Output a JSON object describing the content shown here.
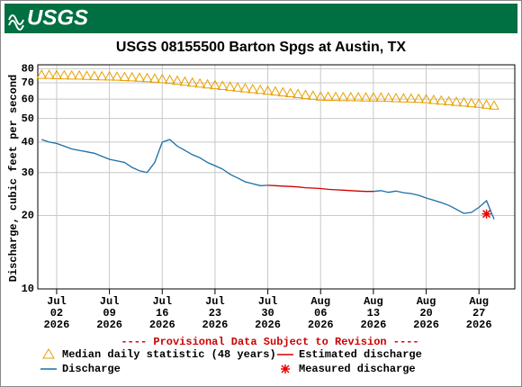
{
  "header": {
    "logo": "USGS"
  },
  "chart_data": {
    "type": "line",
    "title": "USGS 08155500 Barton Spgs at Austin, TX",
    "y_label": "Discharge, cubic feet per second",
    "notice": "---- Provisional Data Subject to Revision ----",
    "log_y": true,
    "grid": true,
    "legend_position": "bottom",
    "xlim": [
      "2026-06-29T12:00",
      "2026-08-31T18:00"
    ],
    "ylim": [
      10,
      83
    ],
    "yticks": [
      10,
      20,
      30,
      40,
      50,
      60,
      70,
      80
    ],
    "xticks": [
      {
        "value": "2026-07-02",
        "label": [
          "Jul",
          "02",
          "2026"
        ]
      },
      {
        "value": "2026-07-09",
        "label": [
          "Jul",
          "09",
          "2026"
        ]
      },
      {
        "value": "2026-07-16",
        "label": [
          "Jul",
          "16",
          "2026"
        ]
      },
      {
        "value": "2026-07-23",
        "label": [
          "Jul",
          "23",
          "2026"
        ]
      },
      {
        "value": "2026-07-30",
        "label": [
          "Jul",
          "30",
          "2026"
        ]
      },
      {
        "value": "2026-08-06",
        "label": [
          "Aug",
          "06",
          "2026"
        ]
      },
      {
        "value": "2026-08-13",
        "label": [
          "Aug",
          "13",
          "2026"
        ]
      },
      {
        "value": "2026-08-20",
        "label": [
          "Aug",
          "20",
          "2026"
        ]
      },
      {
        "value": "2026-08-27",
        "label": [
          "Aug",
          "27",
          "2026"
        ]
      }
    ],
    "x": [
      "2026-06-30",
      "2026-07-01",
      "2026-07-02",
      "2026-07-03",
      "2026-07-04",
      "2026-07-05",
      "2026-07-06",
      "2026-07-07",
      "2026-07-08",
      "2026-07-09",
      "2026-07-10",
      "2026-07-11",
      "2026-07-12",
      "2026-07-13",
      "2026-07-14",
      "2026-07-15",
      "2026-07-16",
      "2026-07-17",
      "2026-07-18",
      "2026-07-19",
      "2026-07-20",
      "2026-07-21",
      "2026-07-22",
      "2026-07-23",
      "2026-07-24",
      "2026-07-25",
      "2026-07-26",
      "2026-07-27",
      "2026-07-28",
      "2026-07-29",
      "2026-07-30",
      "2026-07-31",
      "2026-08-01",
      "2026-08-02",
      "2026-08-03",
      "2026-08-04",
      "2026-08-05",
      "2026-08-06",
      "2026-08-07",
      "2026-08-08",
      "2026-08-09",
      "2026-08-10",
      "2026-08-11",
      "2026-08-12",
      "2026-08-13",
      "2026-08-14",
      "2026-08-15",
      "2026-08-16",
      "2026-08-17",
      "2026-08-18",
      "2026-08-19",
      "2026-08-20",
      "2026-08-21",
      "2026-08-22",
      "2026-08-23",
      "2026-08-24",
      "2026-08-25",
      "2026-08-26",
      "2026-08-27",
      "2026-08-28",
      "2026-08-29"
    ],
    "series": [
      {
        "name": "Median daily statistic (48 years)",
        "color": "#e8a000",
        "marker": "triangle",
        "values": [
          75.5,
          75.5,
          75.3,
          75.2,
          75,
          75,
          74.8,
          74.7,
          74.5,
          74.4,
          74.2,
          74,
          73.8,
          73.5,
          73.2,
          72.9,
          72.5,
          72,
          71.4,
          70.8,
          70.2,
          69.6,
          69,
          68.5,
          68,
          67.5,
          67,
          66.5,
          66,
          65.5,
          65,
          64.5,
          64,
          63.5,
          63,
          62.5,
          62,
          61.5,
          61.4,
          61.3,
          61.2,
          61.2,
          61.1,
          61,
          61,
          60.9,
          60.8,
          60.6,
          60.5,
          60.4,
          60.2,
          60,
          59.6,
          59.2,
          58.8,
          58.5,
          58.2,
          57.8,
          57.5,
          57,
          56.5
        ]
      },
      {
        "name": "Estimated discharge",
        "color": "#cc0000",
        "marker": "line",
        "values": [
          null,
          null,
          null,
          null,
          null,
          null,
          null,
          null,
          null,
          null,
          null,
          null,
          null,
          null,
          null,
          null,
          null,
          null,
          null,
          null,
          null,
          null,
          null,
          null,
          null,
          null,
          null,
          null,
          null,
          null,
          26.6,
          26.5,
          26.4,
          26.3,
          26.2,
          26,
          25.9,
          25.8,
          25.6,
          25.5,
          25.4,
          25.3,
          25.2,
          25.1,
          25.1,
          null,
          null,
          null,
          null,
          null,
          null,
          null,
          null,
          null,
          null,
          null,
          null,
          null,
          null,
          null,
          null
        ]
      },
      {
        "name": "Discharge",
        "color": "#1a6fa8",
        "marker": "line",
        "values": [
          41,
          40,
          39.5,
          38.5,
          37.5,
          37,
          36.5,
          36,
          35,
          34,
          33.5,
          33,
          31.5,
          30.5,
          30,
          33,
          40,
          41,
          38.5,
          37,
          35.5,
          34.5,
          33,
          32,
          31,
          29.5,
          28.5,
          27.5,
          27,
          26.5,
          26.6,
          null,
          null,
          null,
          null,
          null,
          null,
          null,
          null,
          null,
          null,
          null,
          null,
          null,
          25.1,
          25.3,
          24.9,
          25.2,
          24.8,
          24.6,
          24.2,
          23.6,
          23.1,
          22.6,
          22,
          21.2,
          20.4,
          20.6,
          21.6,
          23,
          19.3
        ]
      },
      {
        "name": "Measured discharge",
        "color": "#ee0000",
        "marker": "asterisk",
        "values": [
          null,
          null,
          null,
          null,
          null,
          null,
          null,
          null,
          null,
          null,
          null,
          null,
          null,
          null,
          null,
          null,
          null,
          null,
          null,
          null,
          null,
          null,
          null,
          null,
          null,
          null,
          null,
          null,
          null,
          null,
          null,
          null,
          null,
          null,
          null,
          null,
          null,
          null,
          null,
          null,
          null,
          null,
          null,
          null,
          null,
          null,
          null,
          null,
          null,
          null,
          null,
          null,
          null,
          null,
          null,
          null,
          null,
          null,
          null,
          20.3,
          null
        ]
      }
    ]
  }
}
